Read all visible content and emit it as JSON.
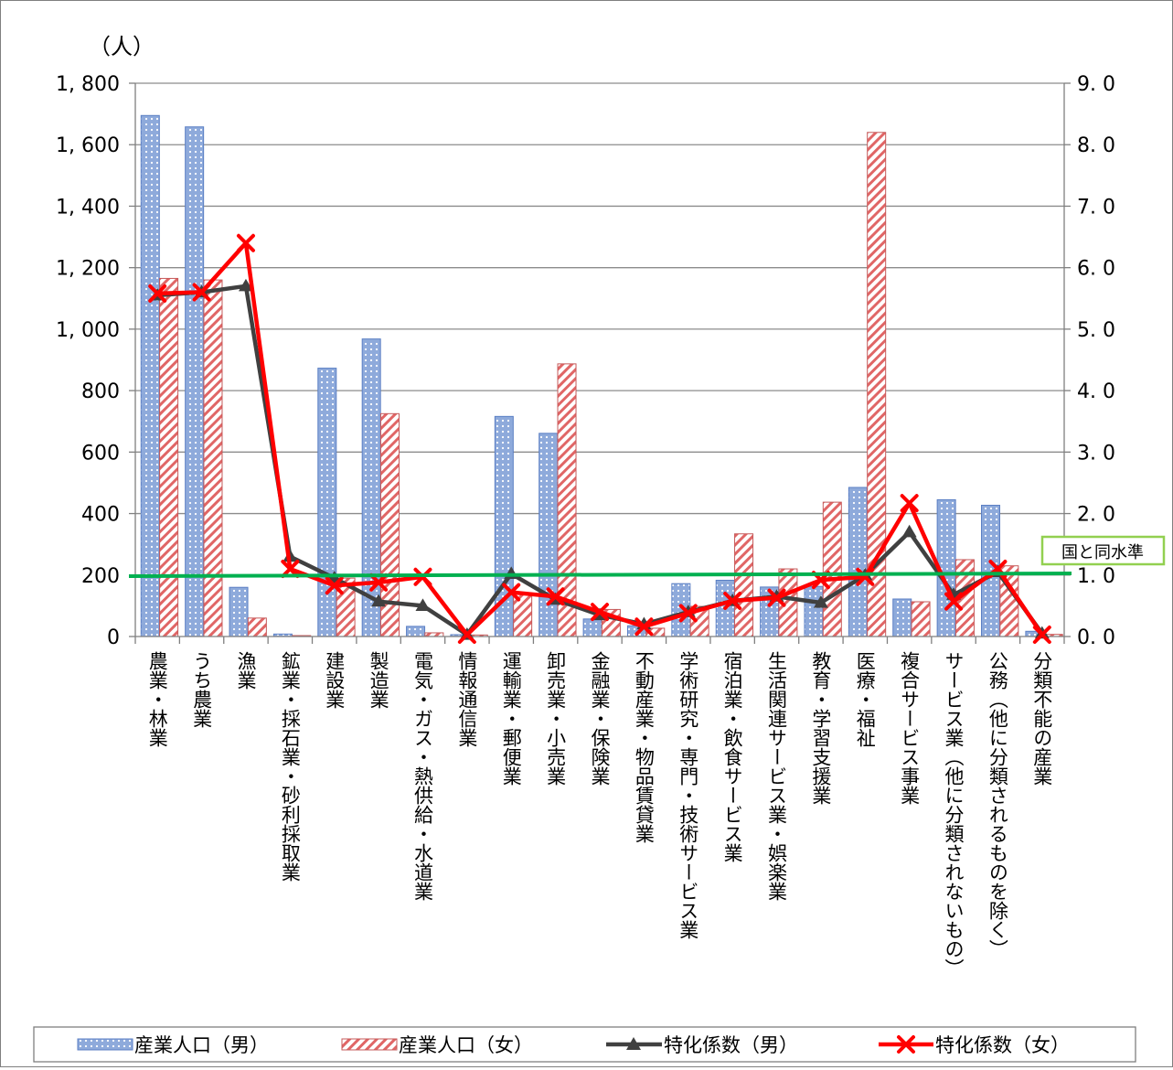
{
  "chart_data": {
    "type": "bar",
    "y_unit_label": "（人）",
    "categories": [
      "農業・林業",
      "うち農業",
      "漁業",
      "鉱業・採石業・砂利採取業",
      "建設業",
      "製造業",
      "電気・ガス・熱供給・水道業",
      "情報通信業",
      "運輸業・郵便業",
      "卸売業・小売業",
      "金融業・保険業",
      "不動産業・物品賃貸業",
      "学術研究・専門・技術サービス業",
      "宿泊業・飲食サービス業",
      "生活関連サービス業・娯楽業",
      "教育・学習支援業",
      "医療・福祉",
      "複合サービス事業",
      "サービス業（他に分類されないもの）",
      "公務（他に分類されるものを除く）",
      "分類不能の産業"
    ],
    "series": [
      {
        "name": "産業人口（男）",
        "kind": "bar",
        "axis": "left",
        "color": "#8eaadb",
        "values": [
          1695,
          1658,
          160,
          8,
          873,
          968,
          33,
          6,
          716,
          661,
          57,
          35,
          172,
          183,
          161,
          163,
          485,
          122,
          445,
          427,
          17
        ]
      },
      {
        "name": "産業人口（女）",
        "kind": "bar",
        "axis": "left",
        "color": "#e06666",
        "values": [
          1165,
          1160,
          60,
          3,
          190,
          725,
          12,
          5,
          140,
          887,
          88,
          27,
          98,
          334,
          220,
          437,
          1640,
          113,
          250,
          230,
          7
        ]
      },
      {
        "name": "特化係数（男）",
        "kind": "line",
        "axis": "right",
        "color": "#404040",
        "values": [
          5.55,
          5.6,
          5.7,
          1.3,
          0.95,
          0.57,
          0.5,
          0.03,
          1.02,
          0.6,
          0.35,
          0.2,
          0.4,
          0.58,
          0.65,
          0.55,
          1.0,
          1.7,
          0.68,
          1.05,
          0.05
        ]
      },
      {
        "name": "特化係数（女）",
        "kind": "line",
        "axis": "right",
        "color": "#ff0000",
        "values": [
          5.58,
          5.6,
          6.4,
          1.1,
          0.83,
          0.88,
          0.97,
          0.03,
          0.72,
          0.65,
          0.4,
          0.16,
          0.38,
          0.58,
          0.63,
          0.92,
          0.97,
          2.17,
          0.57,
          1.1,
          0.03
        ]
      }
    ],
    "left_axis": {
      "ylim": [
        0,
        1800
      ],
      "ticks": [
        0,
        200,
        400,
        600,
        800,
        1000,
        1200,
        1400,
        1600,
        1800
      ],
      "tick_labels": [
        "0",
        "200",
        "400",
        "600",
        "800",
        "1, 000",
        "1, 200",
        "1, 400",
        "1, 600",
        "1, 800"
      ]
    },
    "right_axis": {
      "ylim": [
        0,
        9
      ],
      "ticks": [
        0,
        1,
        2,
        3,
        4,
        5,
        6,
        7,
        8,
        9
      ],
      "tick_labels": [
        "0. 0",
        "1. 0",
        "2. 0",
        "3. 0",
        "4. 0",
        "5. 0",
        "6. 0",
        "7. 0",
        "8. 0",
        "9. 0"
      ]
    },
    "reference_line": {
      "value": 1.0,
      "label": "国と同水準",
      "color": "#00b050"
    },
    "grid": true,
    "legend_position": "bottom"
  }
}
